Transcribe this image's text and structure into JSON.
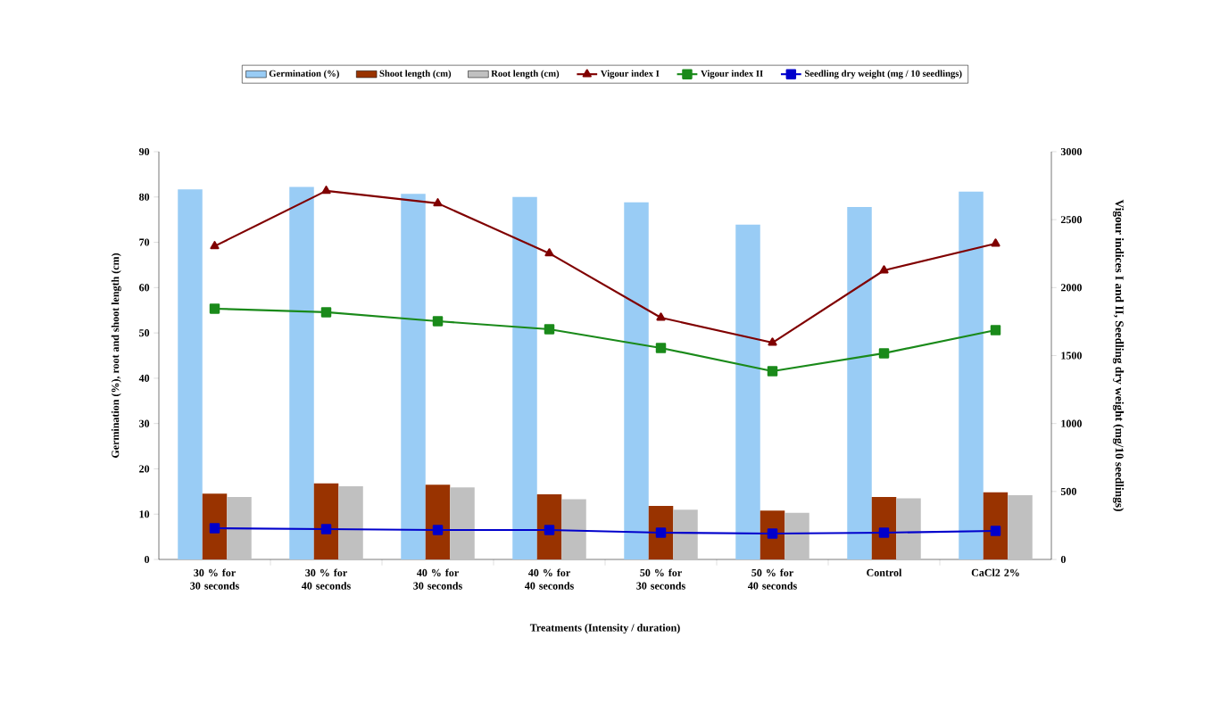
{
  "chart_data": {
    "type": "bar",
    "categories": [
      "30 % for 30 seconds",
      "30 % for 40 seconds",
      "40 % for 30 seconds",
      "40 % for 40 seconds",
      "50 % for 30 seconds",
      "50 % for 40 seconds",
      "Control",
      "CaCl2 2%"
    ],
    "xlabel": "Treatments (Intensity / duration)",
    "ylabel": "Germination (%), root and shoot length (cm)",
    "y2label": "Vigour indices I and II, Seedling dry weight (mg/10 seedlings)",
    "ylim": [
      0,
      90
    ],
    "yticks": [
      0,
      10,
      20,
      30,
      40,
      50,
      60,
      70,
      80,
      90
    ],
    "y2lim": [
      0,
      3000
    ],
    "y2ticks": [
      0,
      500,
      1000,
      1500,
      2000,
      2500,
      3000
    ],
    "legend": "top",
    "series": [
      {
        "name": "Germination (%)",
        "color": "#99ccf5",
        "values": [
          81.7,
          82.2,
          80.7,
          80.0,
          78.8,
          73.9,
          77.8,
          81.2
        ]
      },
      {
        "name": "Shoot length (cm)",
        "color": "#993300",
        "values": [
          14.5,
          16.8,
          16.5,
          14.4,
          11.8,
          10.8,
          13.8,
          14.8
        ]
      },
      {
        "name": "Root length (cm)",
        "color": "#c0c0c0",
        "values": [
          13.8,
          16.2,
          15.9,
          13.3,
          11.0,
          10.3,
          13.5,
          14.2
        ]
      },
      {
        "name": "Vigour index I",
        "type": "line",
        "axis": "y2",
        "marker": "triangle",
        "color": "#800000",
        "values": [
          2305,
          2712,
          2620,
          2252,
          1779,
          1595,
          2127,
          2324
        ]
      },
      {
        "name": "Vigour index II",
        "type": "line",
        "axis": "y2",
        "marker": "square",
        "color": "#1a8a1a",
        "values": [
          1845,
          1819,
          1753,
          1694,
          1556,
          1385,
          1517,
          1687
        ]
      },
      {
        "name": "Seedling dry weight (mg / 10 seedlings)",
        "type": "line",
        "axis": "y2",
        "marker": "square",
        "color": "#0000cc",
        "values": [
          230,
          223,
          217,
          217,
          197,
          190,
          197,
          210
        ]
      }
    ]
  }
}
